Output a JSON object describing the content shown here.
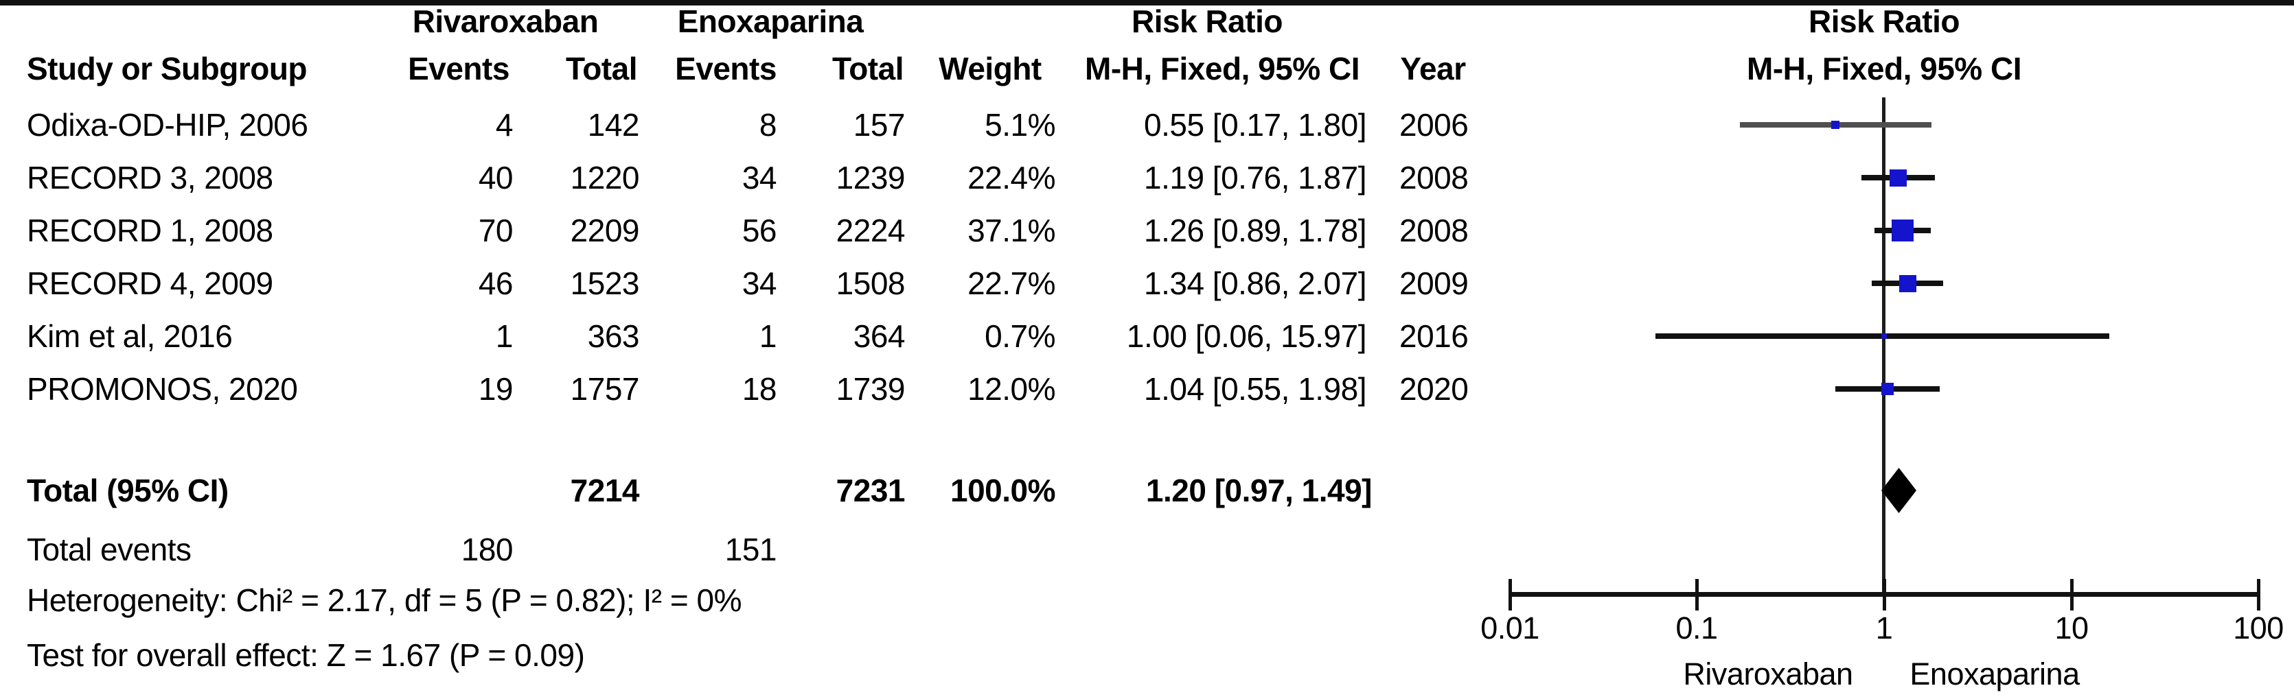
{
  "header": {
    "group_rivaroxaban": "Rivaroxaban",
    "group_enoxaparina": "Enoxaparina",
    "risk_ratio_left": "Risk Ratio",
    "risk_ratio_right": "Risk Ratio",
    "study_or_subgroup": "Study or Subgroup",
    "events": "Events",
    "total": "Total",
    "events2": "Events",
    "total2": "Total",
    "weight": "Weight",
    "mh_fixed": "M-H, Fixed, 95% CI",
    "year": "Year",
    "mh_fixed_right": "M-H, Fixed, 95% CI"
  },
  "rows": [
    {
      "study": "Odixa-OD-HIP, 2006",
      "riv_events": "4",
      "riv_total": "142",
      "enox_events": "8",
      "enox_total": "157",
      "weight": "5.1%",
      "rr_ci": "0.55 [0.17, 1.80]",
      "year": "2006"
    },
    {
      "study": "RECORD 3, 2008",
      "riv_events": "40",
      "riv_total": "1220",
      "enox_events": "34",
      "enox_total": "1239",
      "weight": "22.4%",
      "rr_ci": "1.19 [0.76, 1.87]",
      "year": "2008"
    },
    {
      "study": "RECORD 1, 2008",
      "riv_events": "70",
      "riv_total": "2209",
      "enox_events": "56",
      "enox_total": "2224",
      "weight": "37.1%",
      "rr_ci": "1.26 [0.89, 1.78]",
      "year": "2008"
    },
    {
      "study": "RECORD 4, 2009",
      "riv_events": "46",
      "riv_total": "1523",
      "enox_events": "34",
      "enox_total": "1508",
      "weight": "22.7%",
      "rr_ci": "1.34 [0.86, 2.07]",
      "year": "2009"
    },
    {
      "study": "Kim et al, 2016",
      "riv_events": "1",
      "riv_total": "363",
      "enox_events": "1",
      "enox_total": "364",
      "weight": "0.7%",
      "rr_ci": "1.00 [0.06, 15.97]",
      "year": "2016"
    },
    {
      "study": "PROMONOS, 2020",
      "riv_events": "19",
      "riv_total": "1757",
      "enox_events": "18",
      "enox_total": "1739",
      "weight": "12.0%",
      "rr_ci": "1.04 [0.55, 1.98]",
      "year": "2020"
    }
  ],
  "totals": {
    "label": "Total (95% CI)",
    "riv_total": "7214",
    "enox_total": "7231",
    "weight": "100.0%",
    "rr_ci": "1.20 [0.97, 1.49]",
    "events_label": "Total events",
    "riv_events": "180",
    "enox_events": "151",
    "heterogeneity": "Heterogeneity: Chi² = 2.17, df = 5 (P = 0.82); I² = 0%",
    "overall_effect": "Test for overall effect: Z = 1.67 (P = 0.09)"
  },
  "axis": {
    "left_drug": "Rivaroxaban",
    "right_drug": "Enoxaparina"
  },
  "colors": {
    "marker_blue": "#1414CC",
    "diamond_black": "#000000",
    "line_black": "#111111"
  },
  "chart_data": {
    "type": "forest",
    "x_scale": "log10",
    "x_ticks": [
      0.01,
      0.1,
      1,
      10,
      100
    ],
    "x_range": [
      0.01,
      100
    ],
    "effect_label": "Risk Ratio (M-H, Fixed, 95% CI)",
    "favours_left": "Rivaroxaban",
    "favours_right": "Enoxaparina",
    "studies": [
      {
        "name": "Odixa-OD-HIP, 2006",
        "rr": 0.55,
        "ci_low": 0.17,
        "ci_high": 1.8,
        "weight_pct": 5.1,
        "year": 2006,
        "ci_color": "#4f4f4f"
      },
      {
        "name": "RECORD 3, 2008",
        "rr": 1.19,
        "ci_low": 0.76,
        "ci_high": 1.87,
        "weight_pct": 22.4,
        "year": 2008,
        "ci_color": "#111111"
      },
      {
        "name": "RECORD 1, 2008",
        "rr": 1.26,
        "ci_low": 0.89,
        "ci_high": 1.78,
        "weight_pct": 37.1,
        "year": 2008,
        "ci_color": "#111111"
      },
      {
        "name": "RECORD 4, 2009",
        "rr": 1.34,
        "ci_low": 0.86,
        "ci_high": 2.07,
        "weight_pct": 22.7,
        "year": 2009,
        "ci_color": "#111111"
      },
      {
        "name": "Kim et al, 2016",
        "rr": 1.0,
        "ci_low": 0.06,
        "ci_high": 15.97,
        "weight_pct": 0.7,
        "year": 2016,
        "ci_color": "#111111"
      },
      {
        "name": "PROMONOS, 2020",
        "rr": 1.04,
        "ci_low": 0.55,
        "ci_high": 1.98,
        "weight_pct": 12.0,
        "year": 2020,
        "ci_color": "#111111"
      }
    ],
    "total": {
      "label": "Total (95% CI)",
      "rr": 1.2,
      "ci_low": 0.97,
      "ci_high": 1.49,
      "weight_pct": 100.0
    },
    "heterogeneity": {
      "chi2": 2.17,
      "df": 5,
      "p": 0.82,
      "i2_pct": 0
    },
    "overall_effect": {
      "z": 1.67,
      "p": 0.09
    },
    "total_events": {
      "rivaroxaban": 180,
      "enoxaparina": 151
    },
    "total_n": {
      "rivaroxaban": 7214,
      "enoxaparina": 7231
    }
  }
}
